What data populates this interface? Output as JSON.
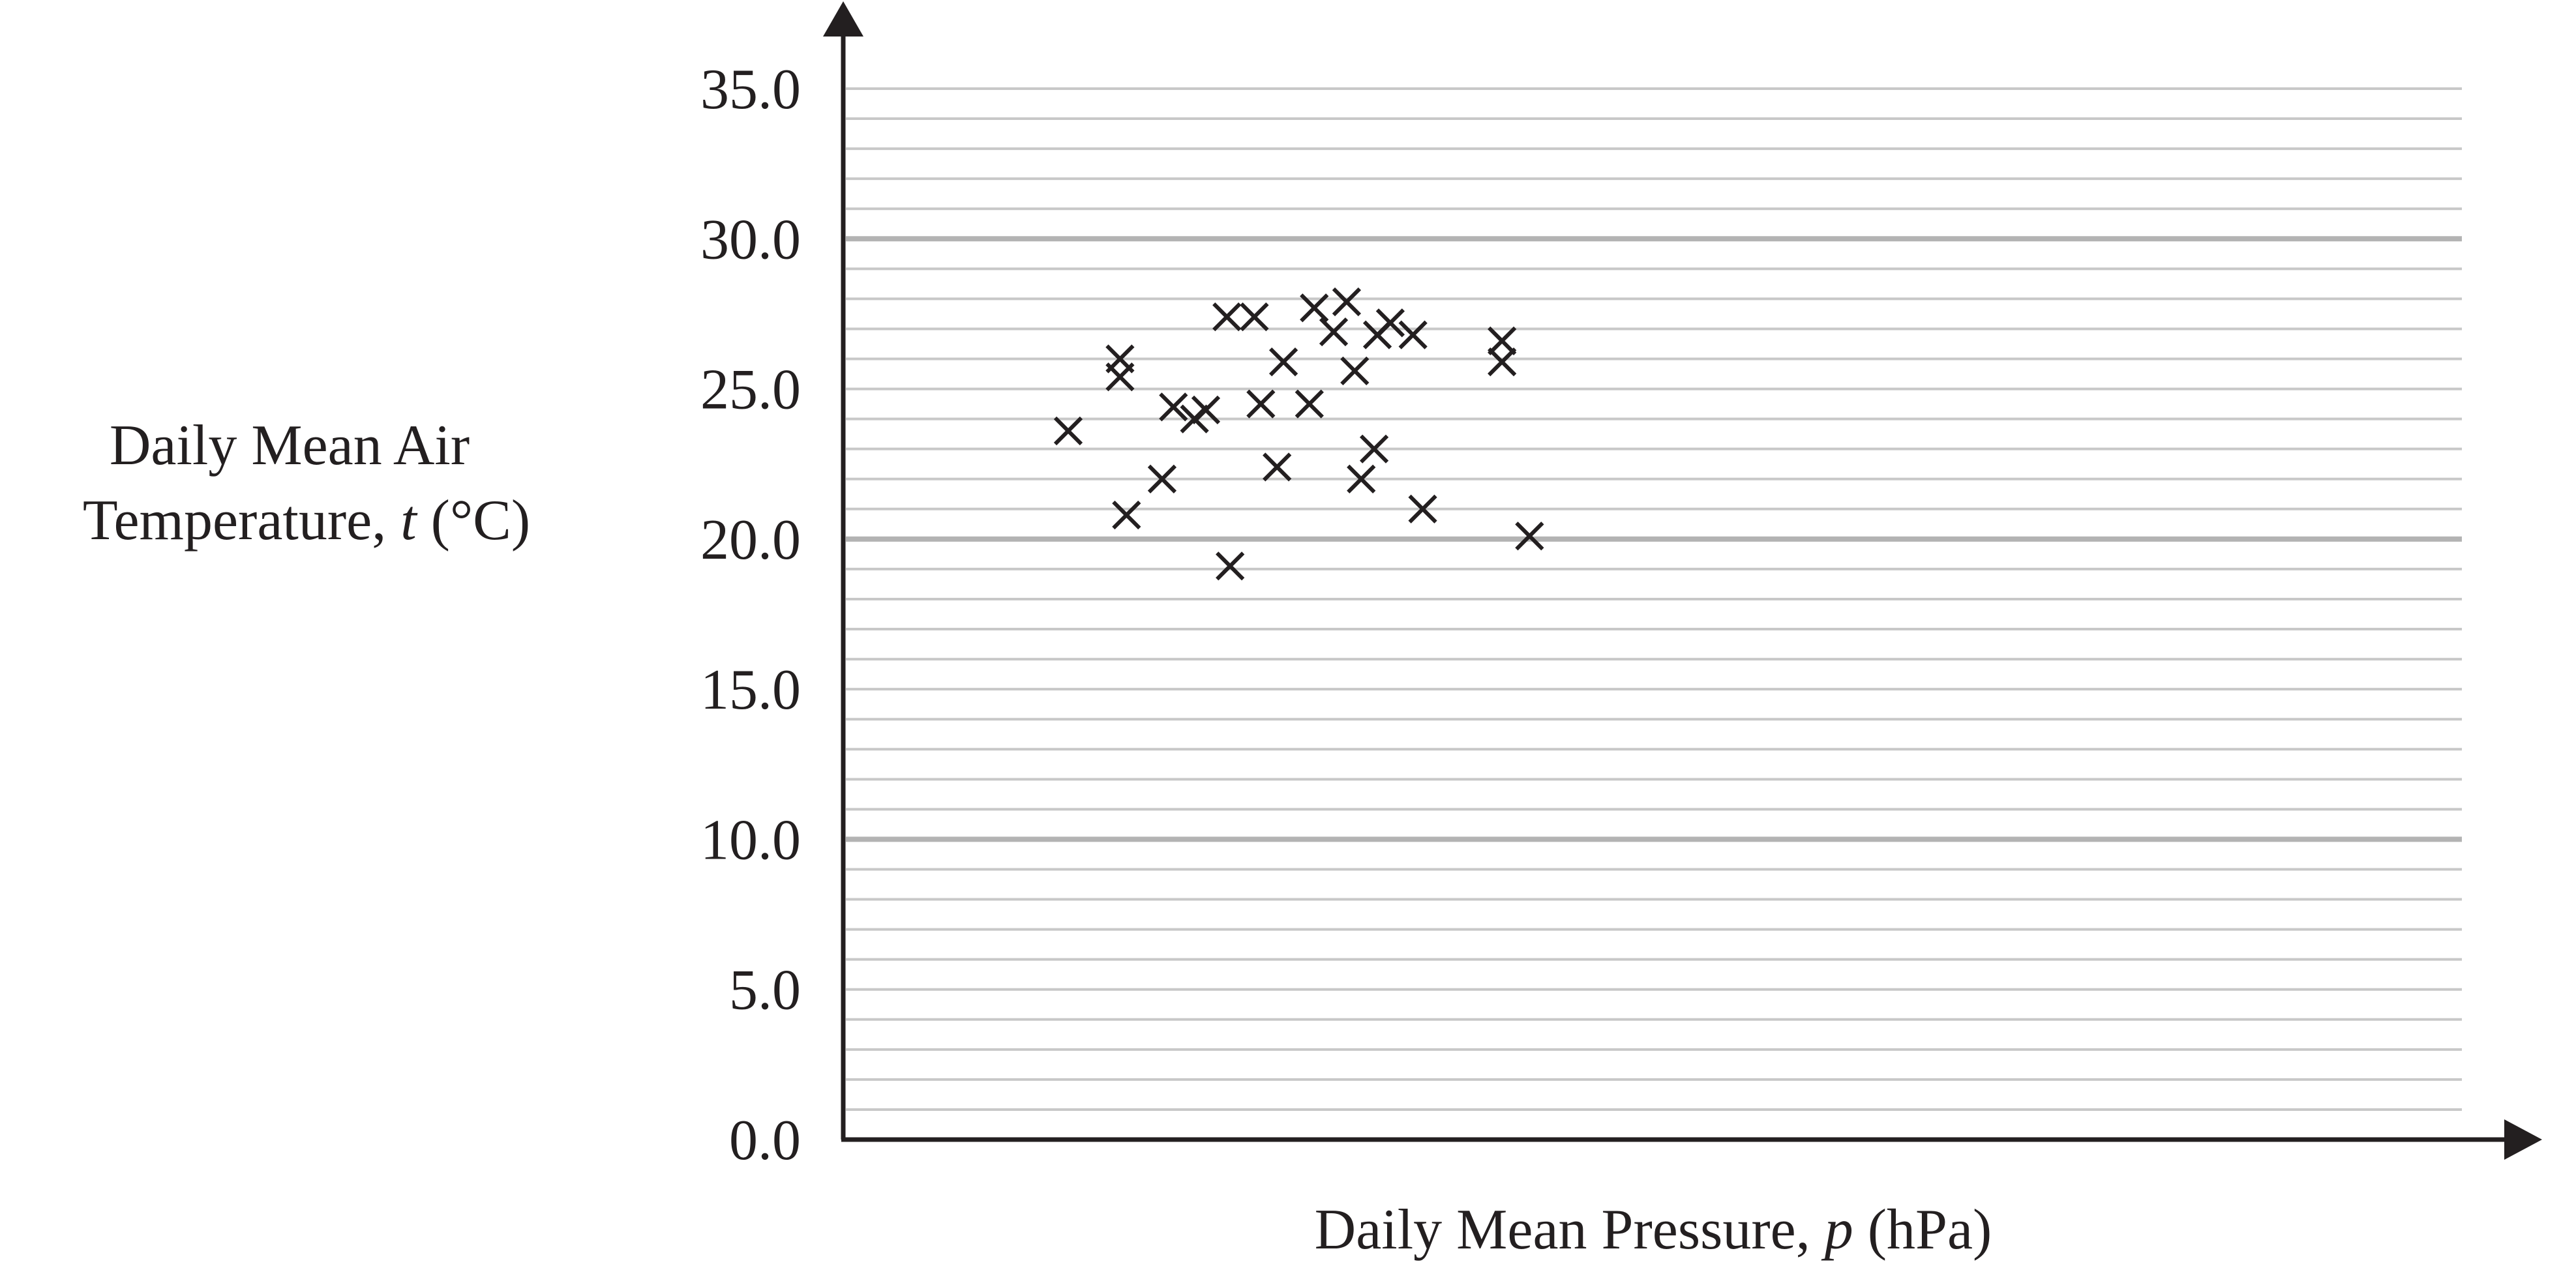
{
  "chart_data": {
    "type": "scatter",
    "title": "",
    "xlabel": {
      "prefix": "Daily Mean Pressure, ",
      "symbol": "p",
      "suffix": " (hPa)"
    },
    "ylabel": {
      "line1": "Daily Mean Air",
      "line2_prefix": "Temperature, ",
      "line2_symbol": "t",
      "line2_suffix": " (°C)"
    },
    "ylim": [
      0,
      35
    ],
    "y_ticks": [
      "0.0",
      "5.0",
      "10.0",
      "15.0",
      "20.0",
      "25.0",
      "30.0",
      "35.0"
    ],
    "y_minor_step": 1,
    "y_major_step": 10,
    "x_tick_labels_shown": false,
    "grid": "horizontal",
    "marker": "x",
    "series": [
      {
        "points": [
          {
            "x": 0.139,
            "y": 23.6
          },
          {
            "x": 0.171,
            "y": 26.0
          },
          {
            "x": 0.171,
            "y": 25.4
          },
          {
            "x": 0.175,
            "y": 20.8
          },
          {
            "x": 0.197,
            "y": 22.0
          },
          {
            "x": 0.204,
            "y": 24.4
          },
          {
            "x": 0.217,
            "y": 24.0
          },
          {
            "x": 0.224,
            "y": 24.3
          },
          {
            "x": 0.237,
            "y": 27.4
          },
          {
            "x": 0.239,
            "y": 19.1
          },
          {
            "x": 0.254,
            "y": 27.4
          },
          {
            "x": 0.258,
            "y": 24.5
          },
          {
            "x": 0.268,
            "y": 22.4
          },
          {
            "x": 0.272,
            "y": 25.9
          },
          {
            "x": 0.288,
            "y": 24.5
          },
          {
            "x": 0.291,
            "y": 27.7
          },
          {
            "x": 0.303,
            "y": 26.9
          },
          {
            "x": 0.311,
            "y": 27.9
          },
          {
            "x": 0.316,
            "y": 25.6
          },
          {
            "x": 0.32,
            "y": 22.0
          },
          {
            "x": 0.328,
            "y": 23.0
          },
          {
            "x": 0.33,
            "y": 26.8
          },
          {
            "x": 0.338,
            "y": 27.2
          },
          {
            "x": 0.352,
            "y": 26.8
          },
          {
            "x": 0.358,
            "y": 21.0
          },
          {
            "x": 0.407,
            "y": 26.6
          },
          {
            "x": 0.407,
            "y": 25.9
          },
          {
            "x": 0.424,
            "y": 20.1
          }
        ]
      }
    ]
  }
}
